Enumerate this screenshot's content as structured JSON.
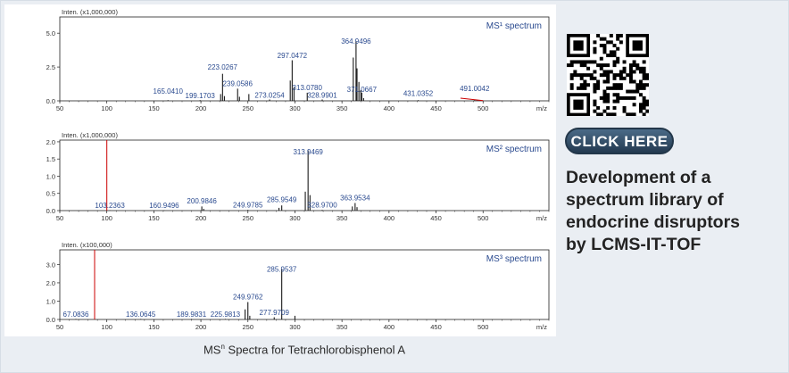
{
  "caption": {
    "prefix": "MS",
    "superscript": "n",
    "suffix": " Spectra for Tetrachlorobisphenol A"
  },
  "promo": {
    "button_label": "CLICK HERE",
    "lines": [
      "Development of a",
      "spectrum library of",
      "endocrine disruptors",
      "by LCMS-IT-TOF"
    ],
    "qr_icon": "qr-code-icon"
  },
  "colors": {
    "peak": "#1a1a1a",
    "precursor_line": "#cc0000",
    "label": "#2a4a8f",
    "axis": "#222222"
  },
  "chart_data": [
    {
      "type": "bar",
      "title": "MS¹ spectrum",
      "ylabel": "Inten. (x1,000,000)",
      "xlabel": "m/z",
      "xlim": [
        50,
        570
      ],
      "ylim": [
        0,
        6.2
      ],
      "xticks": [
        50,
        100,
        150,
        200,
        250,
        300,
        350,
        400,
        450,
        500
      ],
      "yticks": [
        0.0,
        2.5,
        5.0
      ],
      "ytick_labels": [
        "0.0",
        "2.5",
        "5.0"
      ],
      "peaks": [
        {
          "mz": 165.041,
          "intensity": 0.05
        },
        {
          "mz": 199.1703,
          "intensity": 0.05
        },
        {
          "mz": 221.0,
          "intensity": 0.5
        },
        {
          "mz": 223.0267,
          "intensity": 2.0
        },
        {
          "mz": 225.0,
          "intensity": 0.35
        },
        {
          "mz": 239.0586,
          "intensity": 0.9
        },
        {
          "mz": 241.0,
          "intensity": 0.3
        },
        {
          "mz": 251.0,
          "intensity": 0.5
        },
        {
          "mz": 273.0254,
          "intensity": 0.1
        },
        {
          "mz": 295.0,
          "intensity": 1.5
        },
        {
          "mz": 297.0472,
          "intensity": 3.0
        },
        {
          "mz": 299.0,
          "intensity": 1.0
        },
        {
          "mz": 313.078,
          "intensity": 0.6
        },
        {
          "mz": 328.9901,
          "intensity": 0.1
        },
        {
          "mz": 362.0,
          "intensity": 3.2
        },
        {
          "mz": 364.9496,
          "intensity": 4.4
        },
        {
          "mz": 366.0,
          "intensity": 2.4
        },
        {
          "mz": 368.0,
          "intensity": 1.4
        },
        {
          "mz": 370.0,
          "intensity": 0.8
        },
        {
          "mz": 371.0667,
          "intensity": 0.6
        },
        {
          "mz": 373.0,
          "intensity": 0.2
        },
        {
          "mz": 431.0352,
          "intensity": 0.05
        },
        {
          "mz": 491.0042,
          "intensity": 0.05
        }
      ],
      "labels": [
        {
          "text": "165.0410",
          "mz": 165.041,
          "y": 0.38
        },
        {
          "text": "199.1703",
          "mz": 199.1703,
          "y": 0.06
        },
        {
          "text": "223.0267",
          "mz": 223.0267,
          "y": 2.18
        },
        {
          "text": "239.0586",
          "mz": 239.0586,
          "y": 0.95
        },
        {
          "text": "273.0254",
          "mz": 273.0254,
          "y": 0.1
        },
        {
          "text": "297.0472",
          "mz": 297.0472,
          "y": 3.05
        },
        {
          "text": "313.0780",
          "mz": 313.078,
          "y": 0.65
        },
        {
          "text": "328.9901",
          "mz": 328.9901,
          "y": 0.1
        },
        {
          "text": "364.9496",
          "mz": 364.9496,
          "y": 4.1
        },
        {
          "text": "371.0667",
          "mz": 371.0667,
          "y": 0.52
        },
        {
          "text": "431.0352",
          "mz": 431.0352,
          "y": 0.22
        },
        {
          "text": "491.0042",
          "mz": 491.0042,
          "y": 0.6
        }
      ],
      "precursor": {
        "from": [
          476,
          0.2
        ],
        "to": [
          500,
          0.02
        ]
      }
    },
    {
      "type": "bar",
      "title": "MS² spectrum",
      "ylabel": "Inten. (x1,000,000)",
      "xlabel": "m/z",
      "xlim": [
        50,
        570
      ],
      "ylim": [
        0,
        2.05
      ],
      "xticks": [
        50,
        100,
        150,
        200,
        250,
        300,
        350,
        400,
        450,
        500
      ],
      "yticks": [
        0.0,
        0.5,
        1.0,
        1.5,
        2.0
      ],
      "ytick_labels": [
        "0.0",
        "0.5",
        "1.0",
        "1.5",
        "2.0"
      ],
      "precursor_mz": 100,
      "peaks": [
        {
          "mz": 103.2363,
          "intensity": 0.01
        },
        {
          "mz": 160.9496,
          "intensity": 0.01
        },
        {
          "mz": 200.9846,
          "intensity": 0.12
        },
        {
          "mz": 203.0,
          "intensity": 0.05
        },
        {
          "mz": 249.9785,
          "intensity": 0.02
        },
        {
          "mz": 283.0,
          "intensity": 0.08
        },
        {
          "mz": 285.9549,
          "intensity": 0.15
        },
        {
          "mz": 311.0,
          "intensity": 0.55
        },
        {
          "mz": 313.9469,
          "intensity": 1.75
        },
        {
          "mz": 316.0,
          "intensity": 0.45
        },
        {
          "mz": 328.97,
          "intensity": 0.02
        },
        {
          "mz": 361.0,
          "intensity": 0.12
        },
        {
          "mz": 363.9534,
          "intensity": 0.22
        },
        {
          "mz": 366.0,
          "intensity": 0.1
        }
      ],
      "labels": [
        {
          "text": "103.2363",
          "mz": 103.2363,
          "y": 0.02
        },
        {
          "text": "160.9496",
          "mz": 160.9496,
          "y": 0.02
        },
        {
          "text": "200.9846",
          "mz": 200.9846,
          "y": 0.15
        },
        {
          "text": "249.9785",
          "mz": 249.9785,
          "y": 0.04
        },
        {
          "text": "285.9549",
          "mz": 285.9549,
          "y": 0.19
        },
        {
          "text": "313.9469",
          "mz": 313.9469,
          "y": 1.58
        },
        {
          "text": "328.9700",
          "mz": 328.97,
          "y": 0.04
        },
        {
          "text": "363.9534",
          "mz": 363.9534,
          "y": 0.25
        }
      ]
    },
    {
      "type": "bar",
      "title": "MS³ spectrum",
      "ylabel": "Inten. (x100,000)",
      "xlabel": "m/z",
      "xlim": [
        50,
        570
      ],
      "ylim": [
        0,
        3.8
      ],
      "xticks": [
        50,
        100,
        150,
        200,
        250,
        300,
        350,
        400,
        450,
        500
      ],
      "yticks": [
        0.0,
        1.0,
        2.0,
        3.0
      ],
      "ytick_labels": [
        "0.0",
        "1.0",
        "2.0",
        "3.0"
      ],
      "precursor_mz": 87,
      "peaks": [
        {
          "mz": 67.0836,
          "intensity": 0.03
        },
        {
          "mz": 136.0645,
          "intensity": 0.03
        },
        {
          "mz": 189.9831,
          "intensity": 0.03
        },
        {
          "mz": 225.9813,
          "intensity": 0.03
        },
        {
          "mz": 247.0,
          "intensity": 0.55
        },
        {
          "mz": 249.9762,
          "intensity": 0.95
        },
        {
          "mz": 252.0,
          "intensity": 0.2
        },
        {
          "mz": 277.9709,
          "intensity": 0.12
        },
        {
          "mz": 285.9537,
          "intensity": 2.75
        },
        {
          "mz": 300.0,
          "intensity": 0.2
        }
      ],
      "labels": [
        {
          "text": "67.0836",
          "mz": 67.0836,
          "y": 0.04
        },
        {
          "text": "136.0645",
          "mz": 136.0645,
          "y": 0.04
        },
        {
          "text": "189.9831",
          "mz": 189.9831,
          "y": 0.04
        },
        {
          "text": "225.9813",
          "mz": 225.9813,
          "y": 0.04
        },
        {
          "text": "249.9762",
          "mz": 249.9762,
          "y": 1.0
        },
        {
          "text": "277.9709",
          "mz": 277.9709,
          "y": 0.15
        },
        {
          "text": "285.9537",
          "mz": 285.9537,
          "y": 2.5
        }
      ]
    }
  ]
}
